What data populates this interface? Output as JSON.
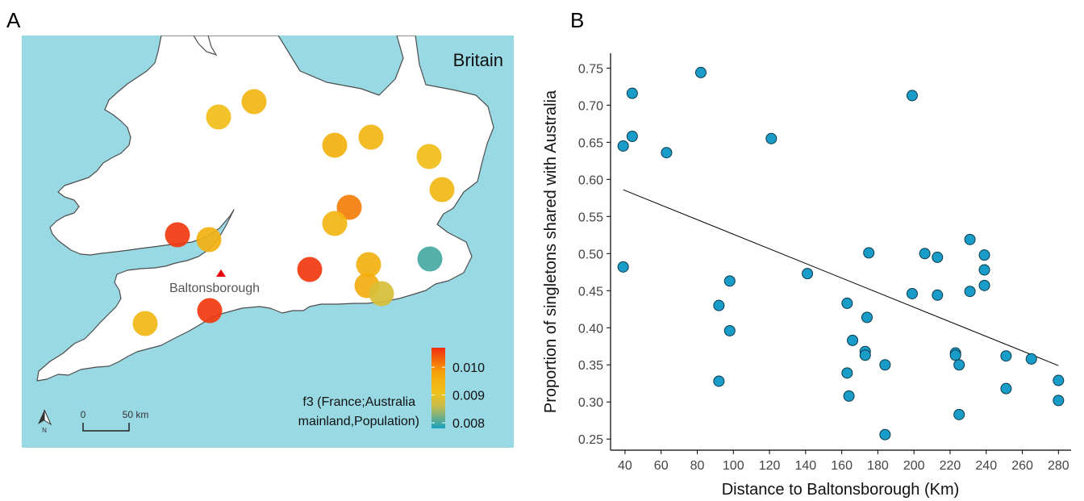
{
  "panels": {
    "a": {
      "letter": "A"
    },
    "b": {
      "letter": "B"
    }
  },
  "colors": {
    "sea": "#99d9e4",
    "land": "#ffffff",
    "coast": "#4d4d4d",
    "point_fill": "#1a9cc9",
    "point_stroke": "#0b3a4a",
    "marker": "#e8000b"
  },
  "map": {
    "region_label": "Britain",
    "town_label": "Baltonsborough",
    "north_label": "N",
    "scale": {
      "start": "0",
      "end": "50 km"
    },
    "legend": {
      "title_lines": [
        "f3 (France;Australia",
        "mainland,Population)"
      ],
      "ticks": [
        {
          "label": "0.010",
          "value": 0.01
        },
        {
          "label": "0.009",
          "value": 0.009
        },
        {
          "label": "0.008",
          "value": 0.008
        }
      ],
      "range": [
        0.0078,
        0.0107
      ],
      "gradient": [
        "#1aa2bf",
        "#c8bd4a",
        "#f0c21a",
        "#f5a20a",
        "#f02d10"
      ]
    },
    "sites": [
      {
        "name": "site-1",
        "f3": 0.0094
      },
      {
        "name": "site-2",
        "f3": 0.0092
      },
      {
        "name": "site-3",
        "f3": 0.0095
      },
      {
        "name": "site-4",
        "f3": 0.0094
      },
      {
        "name": "site-5",
        "f3": 0.0092
      },
      {
        "name": "site-6",
        "f3": 0.0093
      },
      {
        "name": "site-7",
        "f3": 0.0101
      },
      {
        "name": "site-8",
        "f3": 0.0094
      },
      {
        "name": "site-9",
        "f3": 0.0106
      },
      {
        "name": "site-10",
        "f3": 0.0095
      },
      {
        "name": "site-11",
        "f3": 0.0106
      },
      {
        "name": "site-12",
        "f3": 0.0095
      },
      {
        "name": "site-13",
        "f3": 0.008
      },
      {
        "name": "site-14",
        "f3": 0.0096
      },
      {
        "name": "site-15",
        "f3": 0.0088
      },
      {
        "name": "site-16",
        "f3": 0.0106
      },
      {
        "name": "site-17",
        "f3": 0.0093
      }
    ]
  },
  "chart_data": {
    "type": "scatter",
    "xlabel": "Distance to Baltonsborough (Km)",
    "ylabel": "Proportion of singletons shared with Australia",
    "xlim": [
      32,
      287
    ],
    "ylim": [
      0.235,
      0.77
    ],
    "xticks": [
      40,
      60,
      80,
      100,
      120,
      140,
      160,
      180,
      200,
      220,
      240,
      260,
      280
    ],
    "yticks": [
      0.25,
      0.3,
      0.35,
      0.4,
      0.45,
      0.5,
      0.55,
      0.6,
      0.65,
      0.7,
      0.75
    ],
    "ytick_labels": [
      "0.25",
      "0.30",
      "0.35",
      "0.40",
      "0.45",
      "0.50",
      "0.55",
      "0.60",
      "0.65",
      "0.70",
      "0.75"
    ],
    "grid": false,
    "regression_line": {
      "x": [
        39,
        280
      ],
      "y": [
        0.586,
        0.349
      ]
    },
    "points": [
      {
        "x": 39,
        "y": 0.645
      },
      {
        "x": 44,
        "y": 0.716
      },
      {
        "x": 44,
        "y": 0.658
      },
      {
        "x": 39,
        "y": 0.482
      },
      {
        "x": 63,
        "y": 0.636
      },
      {
        "x": 82,
        "y": 0.744
      },
      {
        "x": 92,
        "y": 0.43
      },
      {
        "x": 92,
        "y": 0.328
      },
      {
        "x": 98,
        "y": 0.463
      },
      {
        "x": 98,
        "y": 0.396
      },
      {
        "x": 121,
        "y": 0.655
      },
      {
        "x": 141,
        "y": 0.473
      },
      {
        "x": 163,
        "y": 0.433
      },
      {
        "x": 163,
        "y": 0.339
      },
      {
        "x": 164,
        "y": 0.308
      },
      {
        "x": 166,
        "y": 0.383
      },
      {
        "x": 173,
        "y": 0.368
      },
      {
        "x": 173,
        "y": 0.363
      },
      {
        "x": 174,
        "y": 0.414
      },
      {
        "x": 175,
        "y": 0.501
      },
      {
        "x": 184,
        "y": 0.35
      },
      {
        "x": 184,
        "y": 0.256
      },
      {
        "x": 199,
        "y": 0.713
      },
      {
        "x": 199,
        "y": 0.446
      },
      {
        "x": 206,
        "y": 0.5
      },
      {
        "x": 213,
        "y": 0.495
      },
      {
        "x": 213,
        "y": 0.444
      },
      {
        "x": 223,
        "y": 0.366
      },
      {
        "x": 223,
        "y": 0.363
      },
      {
        "x": 225,
        "y": 0.35
      },
      {
        "x": 225,
        "y": 0.283
      },
      {
        "x": 231,
        "y": 0.519
      },
      {
        "x": 231,
        "y": 0.449
      },
      {
        "x": 239,
        "y": 0.498
      },
      {
        "x": 239,
        "y": 0.478
      },
      {
        "x": 239,
        "y": 0.457
      },
      {
        "x": 251,
        "y": 0.362
      },
      {
        "x": 251,
        "y": 0.318
      },
      {
        "x": 265,
        "y": 0.358
      },
      {
        "x": 280,
        "y": 0.329
      },
      {
        "x": 280,
        "y": 0.302
      }
    ]
  }
}
